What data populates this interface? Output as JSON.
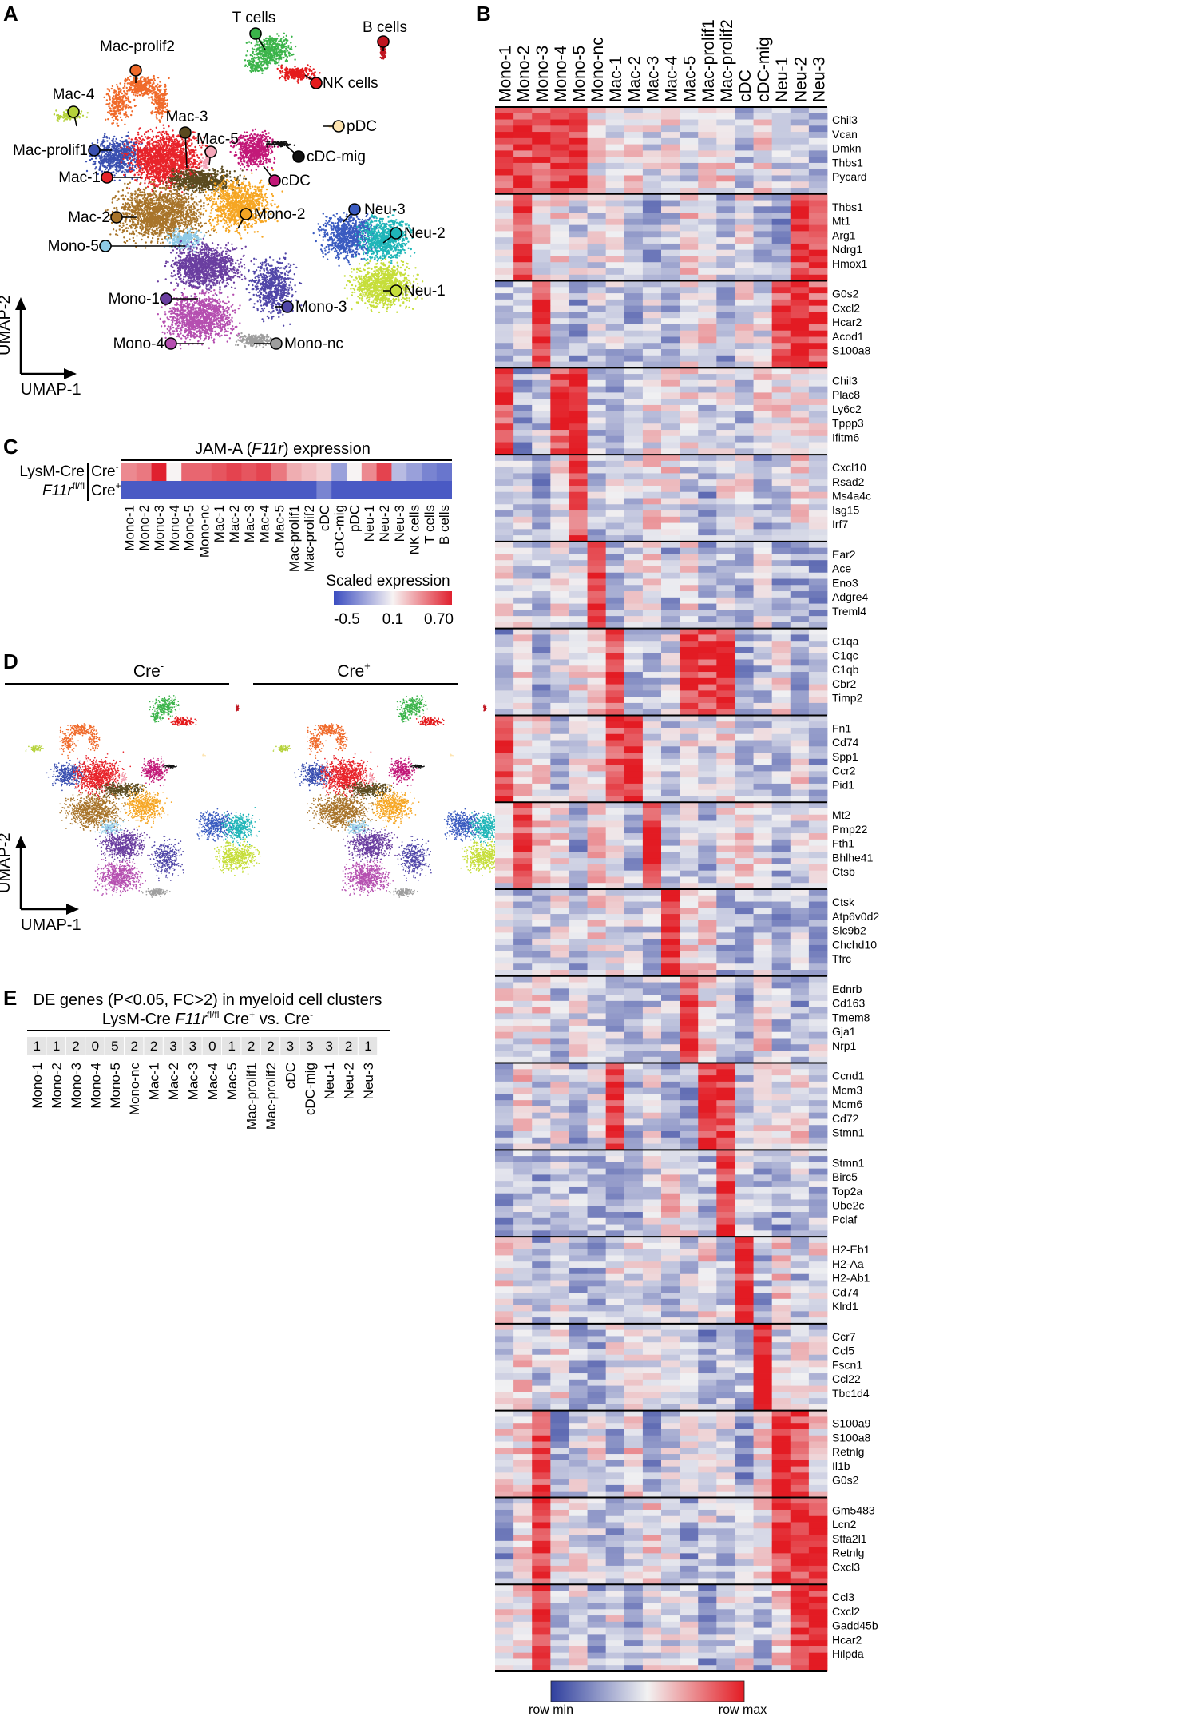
{
  "panels": {
    "a": {
      "letter": "A",
      "axis_y": "UMAP-2",
      "axis_x": "UMAP-1",
      "clusters": [
        {
          "label": "T cells",
          "color": "#3bb44a"
        },
        {
          "label": "B cells",
          "color": "#c0141f"
        },
        {
          "label": "NK cells",
          "color": "#e41a1c"
        },
        {
          "label": "Mac-prolif2",
          "color": "#f06a2a"
        },
        {
          "label": "Mac-4",
          "color": "#b5d23a"
        },
        {
          "label": "Mac-3",
          "color": "#5a4a1f"
        },
        {
          "label": "Mac-5",
          "color": "#f4a6b8"
        },
        {
          "label": "pDC",
          "color": "#fde4b0"
        },
        {
          "label": "Mac-prolif1",
          "color": "#3a4fb0"
        },
        {
          "label": "cDC-mig",
          "color": "#111111"
        },
        {
          "label": "Mac-1",
          "color": "#e8232a"
        },
        {
          "label": "cDC",
          "color": "#c21878"
        },
        {
          "label": "Mac-2",
          "color": "#a8742a"
        },
        {
          "label": "Mono-2",
          "color": "#f6a623"
        },
        {
          "label": "Neu-3",
          "color": "#3a5bc0"
        },
        {
          "label": "Neu-2",
          "color": "#1fb5b8"
        },
        {
          "label": "Mono-5",
          "color": "#8ecae6"
        },
        {
          "label": "Neu-1",
          "color": "#c6de3a"
        },
        {
          "label": "Mono-1",
          "color": "#6a3ea0"
        },
        {
          "label": "Mono-3",
          "color": "#5046a8"
        },
        {
          "label": "Mono-4",
          "color": "#b54fb0"
        },
        {
          "label": "Mono-nc",
          "color": "#9e9e9e"
        }
      ]
    },
    "b": {
      "letter": "B",
      "colorbar_min": "row min",
      "colorbar_max": "row max"
    },
    "c": {
      "letter": "C",
      "title_prefix": "JAM-A (",
      "title_gene": "F11r",
      "title_suffix": ") expression",
      "group_label": "LysM-Cre",
      "group_italic_base": "F11r",
      "group_italic_sup": "fl/fl",
      "row1_base": "Cre",
      "row1_sup": "-",
      "row2_base": "Cre",
      "row2_sup": "+",
      "scale_title": "Scaled expression",
      "scale_ticks": [
        "-0.5",
        "0.1",
        "0.70"
      ]
    },
    "d": {
      "letter": "D",
      "left_base": "Cre",
      "left_sup": "-",
      "right_base": "Cre",
      "right_sup": "+",
      "axis_y": "UMAP-2",
      "axis_x": "UMAP-1"
    },
    "e": {
      "letter": "E",
      "title_line1": "DE genes (P<0.05, FC>2) in myeloid cell clusters",
      "title_line2_a": "LysM-Cre ",
      "title_line2_gene": "F11r",
      "title_line2_sup": "fl/fl",
      "title_line2_b": " Cre",
      "title_line2_sup2": "+",
      "title_line2_c": " vs. Cre",
      "title_line2_sup3": "-"
    }
  },
  "chart_data": [
    {
      "panel": "B",
      "type": "heatmap",
      "scale": "row-scaled (row min to row max)",
      "columns": [
        "Mono-1",
        "Mono-2",
        "Mono-3",
        "Mono-4",
        "Mono-5",
        "Mono-nc",
        "Mac-1",
        "Mac-2",
        "Mac-3",
        "Mac-4",
        "Mac-5",
        "Mac-prolif1",
        "Mac-prolif2",
        "cDC",
        "cDC-mig",
        "Neu-1",
        "Neu-2",
        "Neu-3"
      ],
      "blocks": [
        {
          "genes": [
            "Chil3",
            "Vcan",
            "Dmkn",
            "Thbs1",
            "Pycard"
          ],
          "high": [
            "Mono-1",
            "Mono-2",
            "Mono-3",
            "Mono-4",
            "Mono-5"
          ]
        },
        {
          "genes": [
            "Thbs1",
            "Mt1",
            "Arg1",
            "Ndrg1",
            "Hmox1"
          ],
          "high": [
            "Mono-2",
            "Neu-2",
            "Neu-3"
          ]
        },
        {
          "genes": [
            "G0s2",
            "Cxcl2",
            "Hcar2",
            "Acod1",
            "S100a8"
          ],
          "high": [
            "Mono-3",
            "Neu-1",
            "Neu-2",
            "Neu-3"
          ]
        },
        {
          "genes": [
            "Chil3",
            "Plac8",
            "Ly6c2",
            "Tppp3",
            "Ifitm6"
          ],
          "high": [
            "Mono-1",
            "Mono-4",
            "Mono-5"
          ]
        },
        {
          "genes": [
            "Cxcl10",
            "Rsad2",
            "Ms4a4c",
            "Isg15",
            "Irf7"
          ],
          "high": [
            "Mono-5"
          ]
        },
        {
          "genes": [
            "Ear2",
            "Ace",
            "Eno3",
            "Adgre4",
            "Treml4"
          ],
          "high": [
            "Mono-nc"
          ]
        },
        {
          "genes": [
            "C1qa",
            "C1qc",
            "C1qb",
            "Cbr2",
            "Timp2"
          ],
          "high": [
            "Mac-1",
            "Mac-5",
            "Mac-prolif1",
            "Mac-prolif2"
          ]
        },
        {
          "genes": [
            "Fn1",
            "Cd74",
            "Spp1",
            "Ccr2",
            "Pid1"
          ],
          "high": [
            "Mono-1",
            "Mac-1",
            "Mac-2"
          ]
        },
        {
          "genes": [
            "Mt2",
            "Pmp22",
            "Fth1",
            "Bhlhe41",
            "Ctsb"
          ],
          "high": [
            "Mono-2",
            "Mac-3"
          ]
        },
        {
          "genes": [
            "Ctsk",
            "Atp6v0d2",
            "Slc9b2",
            "Chchd10",
            "Tfrc"
          ],
          "high": [
            "Mac-4"
          ]
        },
        {
          "genes": [
            "Ednrb",
            "Cd163",
            "Tmem8",
            "Gja1",
            "Nrp1"
          ],
          "high": [
            "Mac-5"
          ]
        },
        {
          "genes": [
            "Ccnd1",
            "Mcm3",
            "Mcm6",
            "Cd72",
            "Stmn1"
          ],
          "high": [
            "Mac-1",
            "Mac-prolif1",
            "Mac-prolif2"
          ]
        },
        {
          "genes": [
            "Stmn1",
            "Birc5",
            "Top2a",
            "Ube2c",
            "Pclaf"
          ],
          "high": [
            "Mac-prolif2"
          ]
        },
        {
          "genes": [
            "H2-Eb1",
            "H2-Aa",
            "H2-Ab1",
            "Cd74",
            "Klrd1"
          ],
          "high": [
            "cDC"
          ]
        },
        {
          "genes": [
            "Ccr7",
            "Ccl5",
            "Fscn1",
            "Ccl22",
            "Tbc1d4"
          ],
          "high": [
            "cDC-mig"
          ]
        },
        {
          "genes": [
            "S100a9",
            "S100a8",
            "Retnlg",
            "Il1b",
            "G0s2"
          ],
          "high": [
            "Mono-3",
            "Neu-1",
            "Neu-2"
          ]
        },
        {
          "genes": [
            "Gm5483",
            "Lcn2",
            "Stfa2l1",
            "Retnlg",
            "Cxcl3"
          ],
          "high": [
            "Mono-3",
            "Neu-1",
            "Neu-2",
            "Neu-3"
          ]
        },
        {
          "genes": [
            "Ccl3",
            "Cxcl2",
            "Gadd45b",
            "Hcar2",
            "Hilpda"
          ],
          "high": [
            "Mono-3",
            "Neu-2",
            "Neu-3"
          ]
        }
      ]
    },
    {
      "panel": "C",
      "type": "heatmap",
      "title": "JAM-A (F11r) expression",
      "columns": [
        "Mono-1",
        "Mono-2",
        "Mono-3",
        "Mono-4",
        "Mono-5",
        "Mono-nc",
        "Mac-1",
        "Mac-2",
        "Mac-3",
        "Mac-4",
        "Mac-5",
        "Mac-prolif1",
        "Mac-prolif2",
        "cDC",
        "cDC-mig",
        "pDC",
        "Neu-1",
        "Neu-2",
        "Neu-3",
        "NK cells",
        "T cells",
        "B cells"
      ],
      "rows": [
        "Cre-",
        "Cre+"
      ],
      "values": [
        [
          0.4,
          0.45,
          0.7,
          0.1,
          0.5,
          0.5,
          0.55,
          0.6,
          0.55,
          0.6,
          0.45,
          0.3,
          0.25,
          0.2,
          -0.2,
          0.1,
          0.4,
          0.6,
          -0.1,
          -0.2,
          -0.3,
          -0.35
        ],
        [
          -0.45,
          -0.45,
          -0.45,
          -0.45,
          -0.45,
          -0.45,
          -0.45,
          -0.45,
          -0.45,
          -0.45,
          -0.45,
          -0.45,
          -0.45,
          -0.3,
          -0.45,
          -0.45,
          -0.45,
          -0.45,
          -0.45,
          -0.45,
          -0.45,
          -0.45
        ]
      ],
      "scale_min": -0.5,
      "scale_mid": 0.1,
      "scale_max": 0.7
    },
    {
      "panel": "E",
      "type": "table",
      "title": "DE genes (P<0.05, FC>2) in myeloid cell clusters",
      "categories": [
        "Mono-1",
        "Mono-2",
        "Mono-3",
        "Mono-4",
        "Mono-5",
        "Mono-nc",
        "Mac-1",
        "Mac-2",
        "Mac-3",
        "Mac-4",
        "Mac-5",
        "Mac-prolif1",
        "Mac-prolif2",
        "cDC",
        "cDC-mig",
        "Neu-1",
        "Neu-2",
        "Neu-3"
      ],
      "values": [
        1,
        1,
        2,
        0,
        5,
        2,
        2,
        3,
        3,
        0,
        1,
        2,
        2,
        3,
        3,
        3,
        2,
        1
      ]
    }
  ]
}
